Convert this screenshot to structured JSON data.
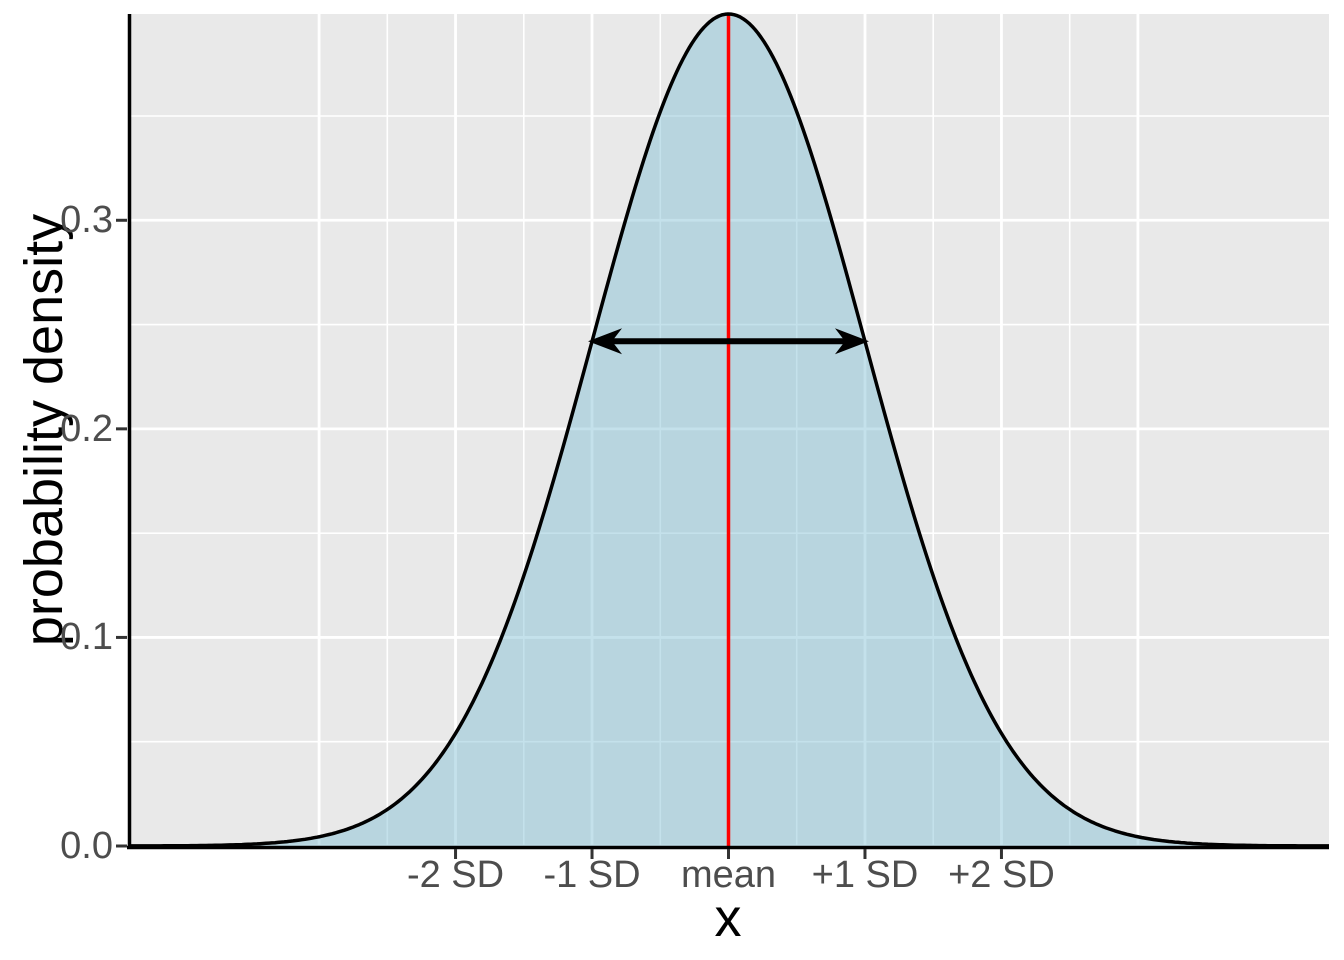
{
  "chart_data": {
    "type": "area",
    "title": "",
    "xlabel": "x",
    "ylabel": "probability density",
    "x_ticks": [
      -2,
      -1,
      0,
      1,
      2
    ],
    "x_tick_labels": [
      "-2 SD",
      "-1 SD",
      "mean",
      "+1 SD",
      "+2 SD"
    ],
    "y_ticks": [
      0,
      0.1,
      0.2,
      0.3
    ],
    "y_tick_labels": [
      "0.0",
      "0.1",
      "0.2",
      "0.3"
    ],
    "xlim": [
      -4.4,
      4.4
    ],
    "ylim": [
      0,
      0.3989
    ],
    "x_grid_major": [
      -3,
      -2,
      -1,
      0,
      1,
      2,
      3
    ],
    "x_grid_minor": [
      -2.5,
      -1.5,
      -0.5,
      0.5,
      1.5,
      2.5
    ],
    "y_grid_major": [
      0,
      0.1,
      0.2,
      0.3
    ],
    "y_grid_minor": [
      0.05,
      0.15,
      0.25,
      0.35
    ],
    "grid": true,
    "legend": false,
    "curve": {
      "distribution": "normal",
      "mean": 0,
      "sd": 1,
      "peak_density": 0.3989,
      "samples": [
        {
          "x": -4.0,
          "y": 0.0001
        },
        {
          "x": -3.5,
          "y": 0.0009
        },
        {
          "x": -3.0,
          "y": 0.0044
        },
        {
          "x": -2.5,
          "y": 0.0175
        },
        {
          "x": -2.0,
          "y": 0.054
        },
        {
          "x": -1.5,
          "y": 0.1295
        },
        {
          "x": -1.0,
          "y": 0.242
        },
        {
          "x": -0.5,
          "y": 0.3521
        },
        {
          "x": 0.0,
          "y": 0.3989
        },
        {
          "x": 0.5,
          "y": 0.3521
        },
        {
          "x": 1.0,
          "y": 0.242
        },
        {
          "x": 1.5,
          "y": 0.1295
        },
        {
          "x": 2.0,
          "y": 0.054
        },
        {
          "x": 2.5,
          "y": 0.0175
        },
        {
          "x": 3.0,
          "y": 0.0044
        },
        {
          "x": 3.5,
          "y": 0.0009
        },
        {
          "x": 4.0,
          "y": 0.0001
        }
      ]
    },
    "annotations": {
      "mean_line": {
        "x": 0,
        "color": "#ff0000"
      },
      "sd_arrow": {
        "x_from": -1,
        "x_to": 1,
        "y": 0.242,
        "color": "#000000"
      }
    },
    "colors": {
      "panel_background": "#e9e9e9",
      "grid": "#ffffff",
      "area_fill": "rgba(125,188,210,0.45)",
      "curve_stroke": "#000000",
      "axis_line": "#000000",
      "tick_mark": "#333333",
      "tick_label": "#4d4d4d",
      "axis_title": "#000000"
    }
  }
}
